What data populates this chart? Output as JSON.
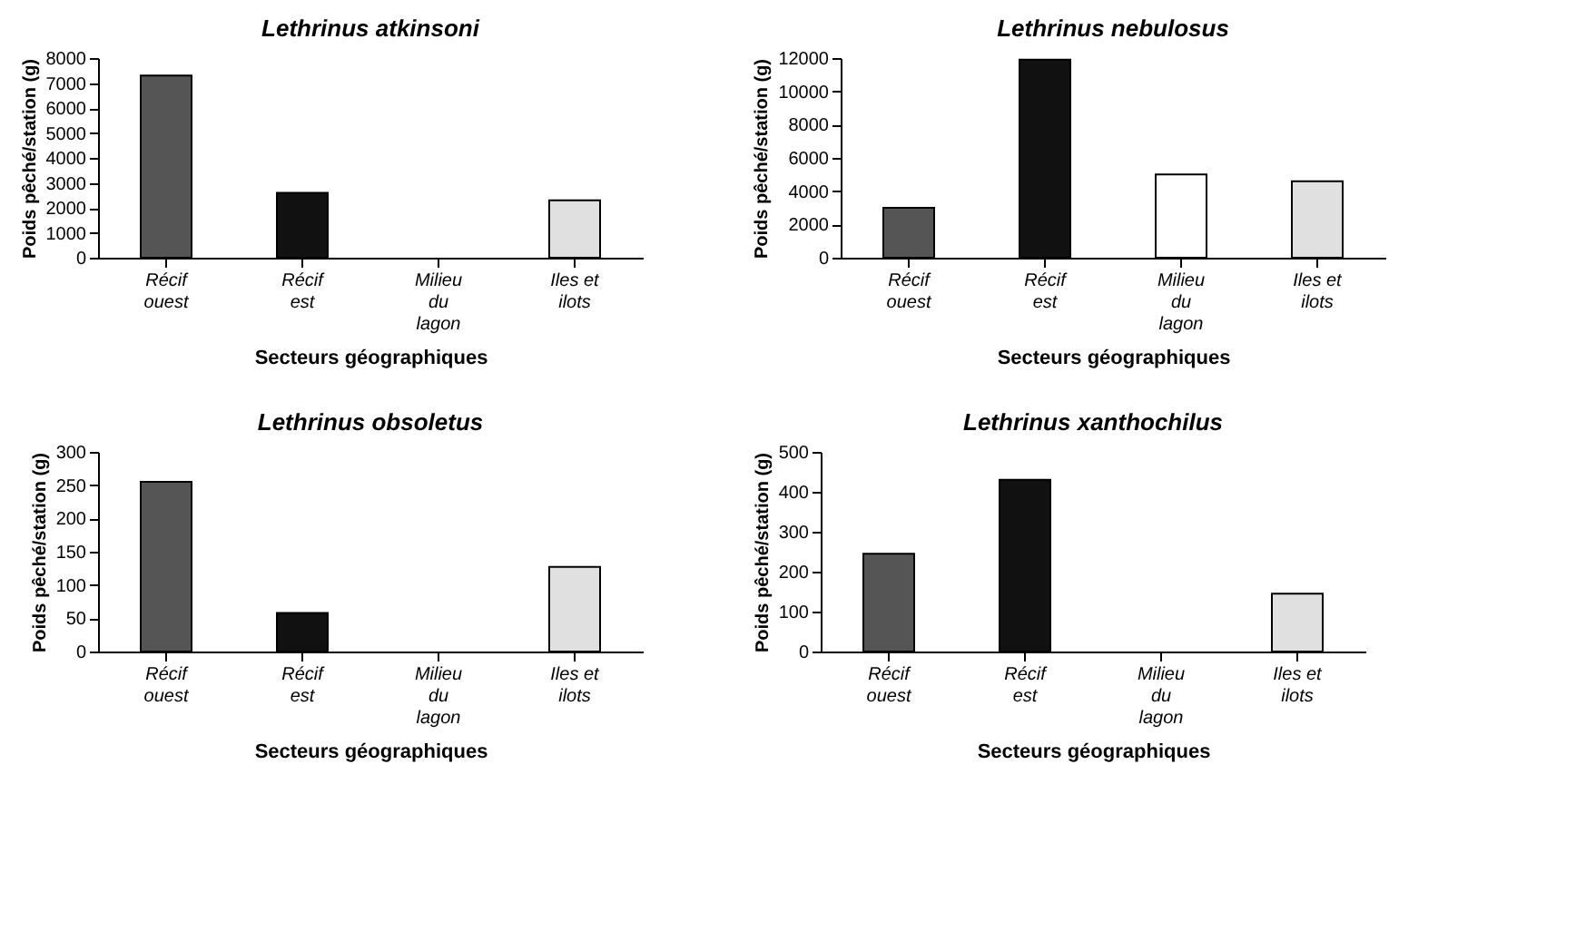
{
  "chart_data": [
    {
      "type": "bar",
      "title": "Lethrinus atkinsoni",
      "xlabel": "Secteurs géographiques",
      "ylabel": "Poids pêché/station (g)",
      "categories": [
        "Récif\nouest",
        "Récif\nest",
        "Milieu\ndu\nlagon",
        "Iles et\nilots"
      ],
      "values": [
        7300,
        2600,
        0,
        2300
      ],
      "colors": [
        "#555555",
        "#111111",
        "#ffffff",
        "#e0e0e0"
      ],
      "ylim": [
        0,
        8000
      ],
      "yticks": [
        0,
        1000,
        2000,
        3000,
        4000,
        5000,
        6000,
        7000,
        8000
      ],
      "grid": false,
      "legend": false
    },
    {
      "type": "bar",
      "title": "Lethrinus nebulosus",
      "xlabel": "Secteurs géographiques",
      "ylabel": "Poids pêché/station (g)",
      "categories": [
        "Récif\nouest",
        "Récif\nest",
        "Milieu\ndu\nlagon",
        "Iles et\nilots"
      ],
      "values": [
        3000,
        11900,
        5000,
        4600
      ],
      "colors": [
        "#555555",
        "#111111",
        "#ffffff",
        "#e0e0e0"
      ],
      "ylim": [
        0,
        12000
      ],
      "yticks": [
        0,
        2000,
        4000,
        6000,
        8000,
        10000,
        12000
      ],
      "grid": false,
      "legend": false
    },
    {
      "type": "bar",
      "title": "Lethrinus obsoletus",
      "xlabel": "Secteurs géographiques",
      "ylabel": "Poids pêché/station (g)",
      "categories": [
        "Récif\nouest",
        "Récif\nest",
        "Milieu\ndu\nlagon",
        "Iles et\nilots"
      ],
      "values": [
        255,
        58,
        0,
        127
      ],
      "colors": [
        "#555555",
        "#111111",
        "#ffffff",
        "#e0e0e0"
      ],
      "ylim": [
        0,
        300
      ],
      "yticks": [
        0,
        50,
        100,
        150,
        200,
        250,
        300
      ],
      "grid": false,
      "legend": false
    },
    {
      "type": "bar",
      "title": "Lethrinus xanthochilus",
      "xlabel": "Secteurs géographiques",
      "ylabel": "Poids pêché/station (g)",
      "categories": [
        "Récif\nouest",
        "Récif\nest",
        "Milieu\ndu\nlagon",
        "Iles et\nilots"
      ],
      "values": [
        245,
        430,
        0,
        145
      ],
      "colors": [
        "#555555",
        "#111111",
        "#ffffff",
        "#e0e0e0"
      ],
      "ylim": [
        0,
        500
      ],
      "yticks": [
        0,
        100,
        200,
        300,
        400,
        500
      ],
      "grid": false,
      "legend": false
    }
  ]
}
